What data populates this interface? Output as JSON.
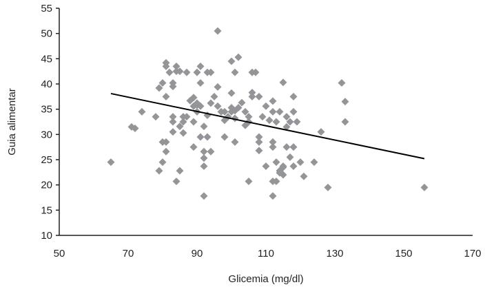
{
  "chart_data": {
    "type": "scatter",
    "title": "",
    "xlabel": "Glicemia (mg/dl)",
    "ylabel": "Guia alimentar",
    "xlim": [
      50,
      170
    ],
    "ylim": [
      10,
      55
    ],
    "xticks": [
      50,
      70,
      90,
      110,
      130,
      150,
      170
    ],
    "yticks": [
      10,
      15,
      20,
      25,
      30,
      35,
      40,
      45,
      50,
      55
    ],
    "grid": false,
    "legend": "none",
    "marker": "diamond",
    "marker_color": "#939598",
    "points": [
      [
        65,
        24.5
      ],
      [
        71,
        31.5
      ],
      [
        72,
        31.2
      ],
      [
        74,
        34.5
      ],
      [
        78,
        33.5
      ],
      [
        79,
        22.8
      ],
      [
        79,
        39.2
      ],
      [
        80,
        24.5
      ],
      [
        80,
        28.5
      ],
      [
        80,
        40.2
      ],
      [
        81,
        26.6
      ],
      [
        81,
        28.5
      ],
      [
        81,
        37.5
      ],
      [
        81,
        44.2
      ],
      [
        81,
        43.5
      ],
      [
        82,
        42.3
      ],
      [
        83,
        32.5
      ],
      [
        83,
        30.5
      ],
      [
        83,
        33.5
      ],
      [
        83,
        39.5
      ],
      [
        83,
        40.2
      ],
      [
        84,
        43.5
      ],
      [
        84,
        42.5
      ],
      [
        84,
        20.7
      ],
      [
        85,
        22.8
      ],
      [
        85,
        42.5
      ],
      [
        85,
        31.6
      ],
      [
        86,
        30.3
      ],
      [
        86,
        32.5
      ],
      [
        86,
        33.5
      ],
      [
        87,
        33.5
      ],
      [
        87,
        42.3
      ],
      [
        88,
        36.7
      ],
      [
        89,
        27.5
      ],
      [
        89,
        37.3
      ],
      [
        89,
        35.6
      ],
      [
        89,
        32.5
      ],
      [
        90,
        35.8
      ],
      [
        90,
        34.5
      ],
      [
        90,
        36.2
      ],
      [
        90,
        42.3
      ],
      [
        91,
        43.5
      ],
      [
        91,
        40.2
      ],
      [
        91,
        35.6
      ],
      [
        91,
        29.5
      ],
      [
        92,
        31.6
      ],
      [
        92,
        26.6
      ],
      [
        92,
        25.3
      ],
      [
        92,
        23.7
      ],
      [
        92,
        17.8
      ],
      [
        93,
        42.3
      ],
      [
        93,
        33.8
      ],
      [
        93,
        29.5
      ],
      [
        94,
        42.3
      ],
      [
        94,
        36.2
      ],
      [
        94,
        26.6
      ],
      [
        95,
        37.5
      ],
      [
        96,
        50.5
      ],
      [
        96,
        39.4
      ],
      [
        96,
        35.6
      ],
      [
        97,
        34.5
      ],
      [
        98,
        34.5
      ],
      [
        98,
        29.5
      ],
      [
        98,
        32.8
      ],
      [
        99,
        33.5
      ],
      [
        100,
        44.5
      ],
      [
        100,
        38.2
      ],
      [
        100,
        34.5
      ],
      [
        100,
        35.3
      ],
      [
        101,
        42.3
      ],
      [
        101,
        33.2
      ],
      [
        101,
        28.5
      ],
      [
        101,
        34.7
      ],
      [
        102,
        35.3
      ],
      [
        102,
        45.3
      ],
      [
        103,
        36.3
      ],
      [
        104,
        34.5
      ],
      [
        104,
        31.8
      ],
      [
        105,
        33.5
      ],
      [
        105,
        32.5
      ],
      [
        105,
        20.7
      ],
      [
        106,
        38.3
      ],
      [
        106,
        37.5
      ],
      [
        106,
        42.3
      ],
      [
        107,
        42.3
      ],
      [
        108,
        37.5
      ],
      [
        108,
        29.5
      ],
      [
        108,
        28.5
      ],
      [
        108,
        26.8
      ],
      [
        109,
        33.5
      ],
      [
        110,
        35.6
      ],
      [
        110,
        23.7
      ],
      [
        111,
        32.8
      ],
      [
        112,
        36.6
      ],
      [
        112,
        34.5
      ],
      [
        112,
        28.5
      ],
      [
        112,
        27.5
      ],
      [
        112,
        20.7
      ],
      [
        112,
        17.8
      ],
      [
        113,
        32.5
      ],
      [
        113,
        24.5
      ],
      [
        113,
        20.7
      ],
      [
        114,
        34.5
      ],
      [
        114,
        22.8
      ],
      [
        114,
        22.4
      ],
      [
        115,
        40.3
      ],
      [
        115,
        23.7
      ],
      [
        115,
        23.5
      ],
      [
        115,
        22
      ],
      [
        116,
        33.5
      ],
      [
        116,
        31.5
      ],
      [
        116,
        27.5
      ],
      [
        117,
        32.5
      ],
      [
        117,
        25.5
      ],
      [
        118,
        37.5
      ],
      [
        118,
        34.5
      ],
      [
        118,
        27.5
      ],
      [
        118,
        23.7
      ],
      [
        119,
        32.5
      ],
      [
        120,
        24.5
      ],
      [
        121,
        21.7
      ],
      [
        124,
        24.5
      ],
      [
        126,
        30.5
      ],
      [
        128,
        19.5
      ],
      [
        132,
        40.2
      ],
      [
        133,
        36.5
      ],
      [
        133,
        32.5
      ],
      [
        156,
        19.5
      ]
    ],
    "trendline": {
      "type": "linear",
      "x": [
        65,
        156
      ],
      "y": [
        38.1,
        25.2
      ],
      "color": "#000000"
    }
  }
}
